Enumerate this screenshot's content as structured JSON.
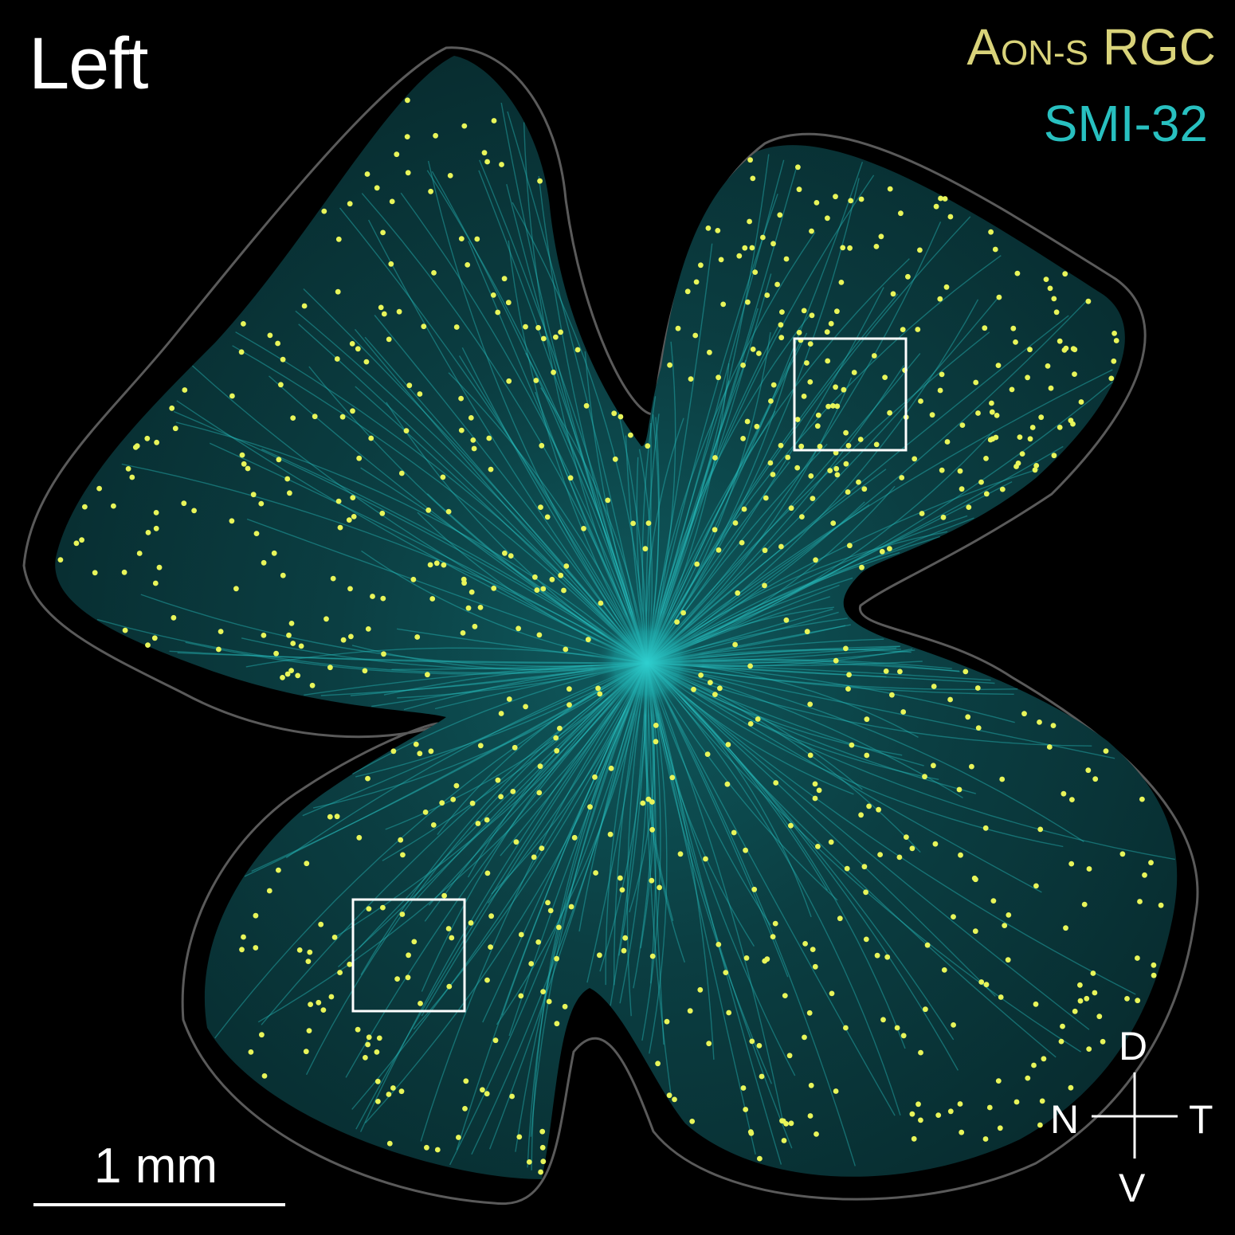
{
  "figure": {
    "side_label": "Left",
    "legend": {
      "rgc_label_prefix": "A",
      "rgc_label_subscript": "ON-S",
      "rgc_label_suffix": " RGC",
      "smi_label": "SMI-32"
    },
    "scale_bar": {
      "label": "1 mm"
    },
    "orientation": {
      "dorsal": "D",
      "ventral": "V",
      "nasal": "N",
      "temporal": "T"
    },
    "colors": {
      "background": "#000000",
      "rgc_dot": "#e8f55a",
      "rgc_legend": "#d9d37a",
      "smi32": "#28c0c0",
      "outline": "#5a5a5a",
      "annotation": "#ffffff"
    }
  }
}
